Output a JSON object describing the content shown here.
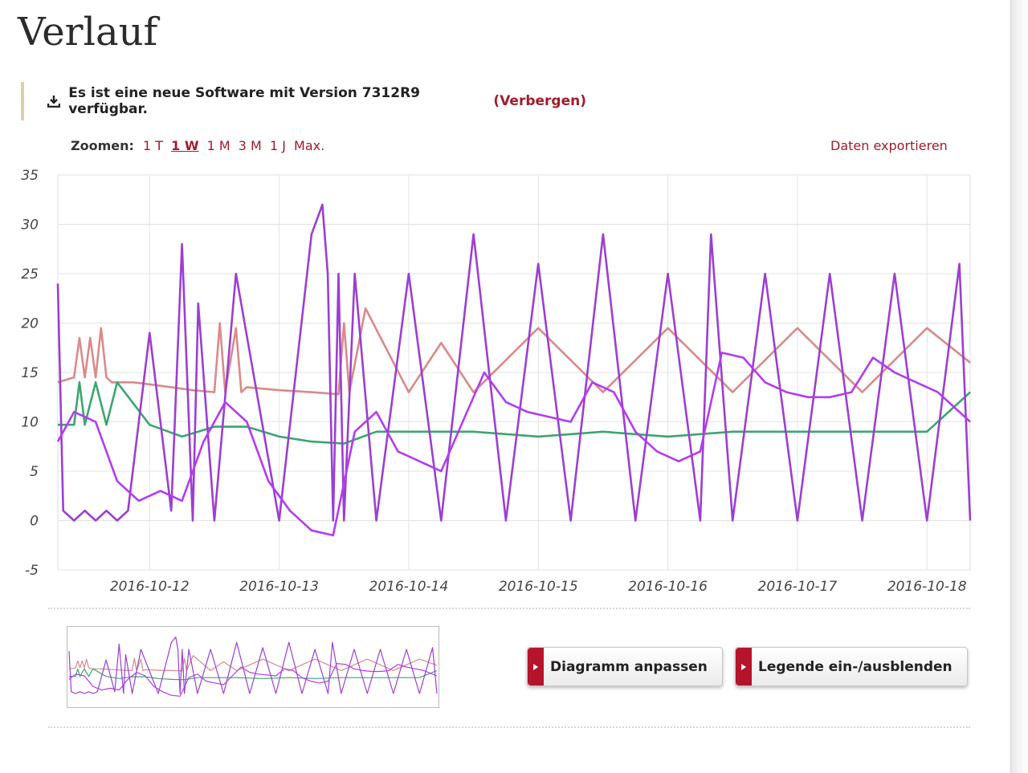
{
  "page": {
    "title": "Verlauf"
  },
  "notice": {
    "message": "Es ist eine neue Software mit Version 7312R9 verfügbar.",
    "hide_link": "(Verbergen)",
    "icon": "download-icon"
  },
  "zoom": {
    "label": "Zoomen:",
    "options": [
      "1 T",
      "1 W",
      "1 M",
      "3 M",
      "1 J",
      "Max."
    ],
    "selected": "1 W"
  },
  "export_link": "Daten exportieren",
  "buttons": {
    "adjust": "Diagramm anpassen",
    "legend": "Legende ein-/ausblenden"
  },
  "colors": {
    "accent": "#a01c2c",
    "series_red": "#d98a8a",
    "series_green": "#3aa66e",
    "series_purple_dark": "#9b3fd1",
    "series_purple_light": "#a94bd6",
    "series_violet": "#b23cf0"
  },
  "chart_data": {
    "type": "line",
    "ylim": [
      -5,
      35
    ],
    "yticks": [
      35,
      30,
      25,
      20,
      15,
      10,
      5,
      0,
      -5
    ],
    "xlim": [
      "2016-10-11T07:00",
      "2016-10-18T08:00"
    ],
    "xticks": [
      "2016-10-12",
      "2016-10-13",
      "2016-10-14",
      "2016-10-15",
      "2016-10-16",
      "2016-10-17",
      "2016-10-18"
    ],
    "grid": true,
    "series": [
      {
        "color": "#d98a8a",
        "x": [
          "2016-10-11T07:00",
          "2016-10-11T10:00",
          "2016-10-11T11:00",
          "2016-10-11T12:00",
          "2016-10-11T13:00",
          "2016-10-11T14:00",
          "2016-10-11T15:00",
          "2016-10-11T16:00",
          "2016-10-11T17:00",
          "2016-10-11T18:00",
          "2016-10-11T21:00",
          "2016-10-12T00:00",
          "2016-10-12T04:00",
          "2016-10-12T08:00",
          "2016-10-12T12:00",
          "2016-10-12T13:00",
          "2016-10-12T14:00",
          "2016-10-12T16:00",
          "2016-10-12T17:00",
          "2016-10-12T18:00",
          "2016-10-13T00:00",
          "2016-10-13T06:00",
          "2016-10-13T11:00",
          "2016-10-13T12:00",
          "2016-10-13T13:00",
          "2016-10-13T16:00",
          "2016-10-14T00:00",
          "2016-10-14T06:00",
          "2016-10-14T12:00",
          "2016-10-15T00:00",
          "2016-10-15T12:00",
          "2016-10-16T00:00",
          "2016-10-16T12:00",
          "2016-10-17T00:00",
          "2016-10-17T12:00",
          "2016-10-18T00:00",
          "2016-10-18T08:00"
        ],
        "y": [
          14,
          14.5,
          18.5,
          14.5,
          18.5,
          14.5,
          19.5,
          14.5,
          14,
          14,
          14,
          13.8,
          13.5,
          13.2,
          13,
          20,
          13,
          19.5,
          13,
          13.5,
          13.2,
          13,
          12.8,
          20,
          13,
          21.5,
          13,
          18,
          13,
          19.5,
          13,
          19.5,
          13,
          19.5,
          13,
          19.5,
          16
        ]
      },
      {
        "color": "#3aa66e",
        "x": [
          "2016-10-11T07:00",
          "2016-10-11T10:00",
          "2016-10-11T11:00",
          "2016-10-11T12:00",
          "2016-10-11T14:00",
          "2016-10-11T16:00",
          "2016-10-11T18:00",
          "2016-10-12T00:00",
          "2016-10-12T06:00",
          "2016-10-12T12:00",
          "2016-10-12T18:00",
          "2016-10-13T00:00",
          "2016-10-13T06:00",
          "2016-10-13T12:00",
          "2016-10-13T18:00",
          "2016-10-14T00:00",
          "2016-10-14T06:00",
          "2016-10-14T12:00",
          "2016-10-15T00:00",
          "2016-10-15T12:00",
          "2016-10-16T00:00",
          "2016-10-16T12:00",
          "2016-10-17T00:00",
          "2016-10-17T12:00",
          "2016-10-18T00:00",
          "2016-10-18T08:00"
        ],
        "y": [
          9.7,
          9.7,
          14,
          9.7,
          14,
          9.7,
          14,
          9.7,
          8.5,
          9.5,
          9.5,
          8.5,
          8,
          7.8,
          9,
          9,
          9,
          9,
          8.5,
          9,
          8.5,
          9,
          9,
          9,
          9,
          13
        ]
      },
      {
        "color": "#9b3fd1",
        "x": [
          "2016-10-11T07:00",
          "2016-10-11T08:00",
          "2016-10-11T10:00",
          "2016-10-11T12:00",
          "2016-10-11T14:00",
          "2016-10-11T16:00",
          "2016-10-11T18:00",
          "2016-10-11T20:00",
          "2016-10-12T00:00",
          "2016-10-12T04:00",
          "2016-10-12T06:00",
          "2016-10-12T08:00",
          "2016-10-12T09:00",
          "2016-10-12T12:00",
          "2016-10-12T16:00",
          "2016-10-13T00:00",
          "2016-10-13T06:00",
          "2016-10-13T08:00",
          "2016-10-13T09:00",
          "2016-10-13T10:00",
          "2016-10-13T11:00",
          "2016-10-13T12:00",
          "2016-10-13T14:00",
          "2016-10-13T18:00",
          "2016-10-14T00:00",
          "2016-10-14T06:00",
          "2016-10-14T12:00",
          "2016-10-14T18:00",
          "2016-10-15T00:00",
          "2016-10-15T06:00",
          "2016-10-15T12:00",
          "2016-10-15T18:00",
          "2016-10-16T00:00",
          "2016-10-16T06:00",
          "2016-10-16T08:00",
          "2016-10-16T12:00",
          "2016-10-16T18:00",
          "2016-10-17T00:00",
          "2016-10-17T06:00",
          "2016-10-17T12:00",
          "2016-10-17T18:00",
          "2016-10-18T00:00",
          "2016-10-18T06:00",
          "2016-10-18T08:00"
        ],
        "y": [
          24,
          1,
          0,
          1,
          0,
          1,
          0,
          1,
          19,
          1,
          28,
          0,
          22,
          0,
          25,
          0,
          29,
          32,
          25,
          0,
          25,
          0,
          25,
          0,
          25,
          0,
          29,
          0,
          26,
          0,
          29,
          0,
          25,
          0,
          29,
          0,
          25,
          0,
          25,
          0,
          25,
          0,
          26,
          0
        ]
      },
      {
        "color": "#b23cf0",
        "x": [
          "2016-10-11T07:00",
          "2016-10-11T10:00",
          "2016-10-11T14:00",
          "2016-10-11T18:00",
          "2016-10-11T22:00",
          "2016-10-12T02:00",
          "2016-10-12T06:00",
          "2016-10-12T10:00",
          "2016-10-12T14:00",
          "2016-10-12T18:00",
          "2016-10-12T22:00",
          "2016-10-13T02:00",
          "2016-10-13T06:00",
          "2016-10-13T10:00",
          "2016-10-13T14:00",
          "2016-10-13T18:00",
          "2016-10-13T22:00",
          "2016-10-14T02:00",
          "2016-10-14T06:00",
          "2016-10-14T10:00",
          "2016-10-14T14:00",
          "2016-10-14T18:00",
          "2016-10-14T22:00",
          "2016-10-15T02:00",
          "2016-10-15T06:00",
          "2016-10-15T10:00",
          "2016-10-15T14:00",
          "2016-10-15T18:00",
          "2016-10-15T22:00",
          "2016-10-16T02:00",
          "2016-10-16T06:00",
          "2016-10-16T10:00",
          "2016-10-16T14:00",
          "2016-10-16T18:00",
          "2016-10-16T22:00",
          "2016-10-17T02:00",
          "2016-10-17T06:00",
          "2016-10-17T10:00",
          "2016-10-17T14:00",
          "2016-10-17T18:00",
          "2016-10-17T22:00",
          "2016-10-18T02:00",
          "2016-10-18T06:00",
          "2016-10-18T08:00"
        ],
        "y": [
          8,
          11,
          10,
          4,
          2,
          3,
          2,
          8,
          12,
          10,
          4,
          1,
          -1,
          -1.5,
          9,
          11,
          7,
          6,
          5,
          10,
          15,
          12,
          11,
          10.5,
          10,
          14,
          13,
          9,
          7,
          6,
          7,
          17,
          16.5,
          14,
          13,
          12.5,
          12.5,
          13,
          16.5,
          15,
          14,
          13,
          11,
          10
        ]
      }
    ]
  }
}
